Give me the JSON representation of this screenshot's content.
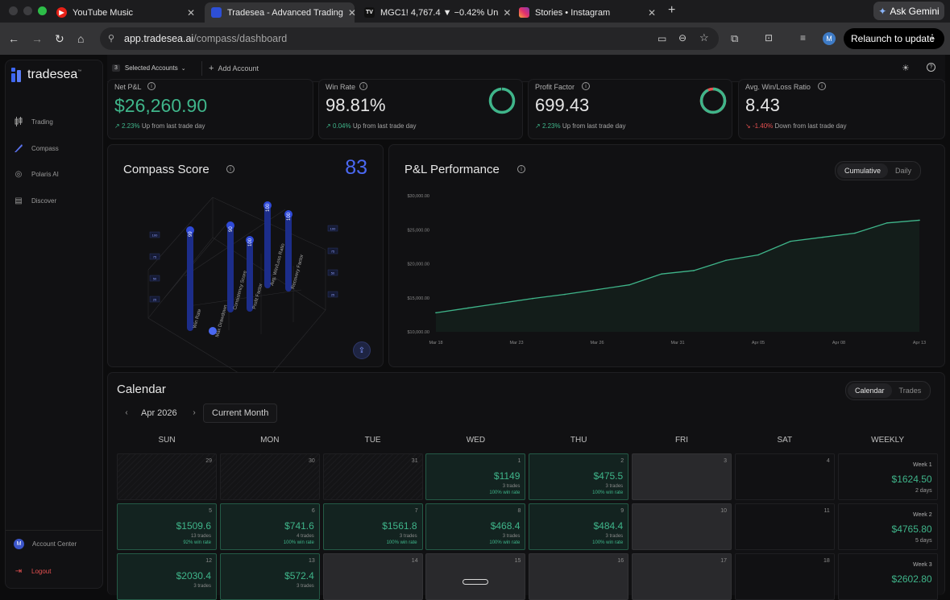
{
  "browser": {
    "tabs": [
      {
        "title": "YouTube Music"
      },
      {
        "title": "Tradesea - Advanced Trading"
      },
      {
        "title": "MGC1! 4,767.4 ▼ −0.42% Un"
      },
      {
        "title": "Stories • Instagram"
      }
    ],
    "new_tab": "+",
    "close_glyph": "✕",
    "gemini": "Ask Gemini",
    "url_host": "app.tradesea.ai",
    "url_path": "/compass/dashboard",
    "profile_initial": "M",
    "relaunch": "Relaunch to update"
  },
  "sidebar": {
    "brand": "tradesea",
    "brand_mark": "™",
    "items": [
      {
        "label": "Trading",
        "icon": "candlestick-icon"
      },
      {
        "label": "Compass",
        "icon": "compass-icon"
      },
      {
        "label": "Polaris AI",
        "icon": "polaris-icon"
      },
      {
        "label": "Discover",
        "icon": "discover-icon"
      }
    ],
    "account_initial": "M",
    "account_center": "Account Center",
    "logout": "Logout"
  },
  "topbar": {
    "account_count": "3",
    "selected_accounts": "Selected Accounts",
    "add_account": "Add Account"
  },
  "stats": [
    {
      "label": "Net P&L",
      "value": "$26,260.90",
      "change": "2.23%",
      "change_text": "Up from last trade day",
      "direction": "up"
    },
    {
      "label": "Win Rate",
      "value": "98.81%",
      "change": "0.04%",
      "change_text": "Up from last trade day",
      "direction": "up",
      "ring": 0.9881
    },
    {
      "label": "Profit Factor",
      "value": "699.43",
      "change": "2.23%",
      "change_text": "Up from last trade day",
      "direction": "up",
      "ring": 0.93
    },
    {
      "label": "Avg. Win/Loss Ratio",
      "value": "8.43",
      "change": "-1.40%",
      "change_text": "Down from last trade day",
      "direction": "down"
    }
  ],
  "compass": {
    "title": "Compass Score",
    "score": "83",
    "bars": [
      {
        "label": "Win Rate",
        "value": "99"
      },
      {
        "label": "Max Drawdown",
        "value": "0"
      },
      {
        "label": "Consistency Score",
        "value": "90"
      },
      {
        "label": "Profit Factor",
        "value": "100"
      },
      {
        "label": "Avg. Win/Loss Ratio",
        "value": "100"
      },
      {
        "label": "Recovery Factor",
        "value": "100"
      }
    ],
    "axis_ticks": [
      "100",
      "75",
      "50",
      "25"
    ]
  },
  "pnl": {
    "title": "P&L Performance",
    "toggle": [
      "Cumulative",
      "Daily"
    ],
    "active_toggle": "Cumulative"
  },
  "chart_data": {
    "type": "area",
    "title": "P&L Performance",
    "xlabel": "",
    "ylabel": "",
    "y_ticks": [
      "$30,000.00",
      "$25,000.00",
      "$20,000.00",
      "$15,000.00",
      "$10,000.00"
    ],
    "x_ticks": [
      "Mar 18",
      "Mar 23",
      "Mar 26",
      "Mar 31",
      "Apr 05",
      "Apr 08",
      "Apr 13"
    ],
    "ylim": [
      10000,
      30000
    ],
    "series": [
      {
        "values": [
          12800,
          13500,
          14200,
          14900,
          15500,
          16200,
          16900,
          18500,
          19000,
          20500,
          21300,
          23300,
          23900,
          24500,
          26000,
          26400
        ]
      }
    ],
    "line_color": "#3fb58a"
  },
  "calendar": {
    "title": "Calendar",
    "toggle": [
      "Calendar",
      "Trades"
    ],
    "active_toggle": "Calendar",
    "prev": "‹",
    "next": "›",
    "month": "Apr 2026",
    "current_month": "Current Month",
    "days": [
      "SUN",
      "MON",
      "TUE",
      "WED",
      "THU",
      "FRI",
      "SAT",
      "WEEKLY"
    ],
    "rows": [
      [
        {
          "kind": "muted",
          "day": "29"
        },
        {
          "kind": "muted",
          "day": "30"
        },
        {
          "kind": "muted",
          "day": "31"
        },
        {
          "kind": "win",
          "day": "1",
          "amount": "$1149",
          "trades": "3 trades",
          "winrate": "100% win rate"
        },
        {
          "kind": "win",
          "day": "2",
          "amount": "$475.5",
          "trades": "3 trades",
          "winrate": "100% win rate"
        },
        {
          "kind": "nt",
          "day": "3"
        },
        {
          "kind": "empty",
          "day": "4"
        },
        {
          "kind": "week",
          "label": "Week 1",
          "amount": "$1624.50",
          "days": "2 days"
        }
      ],
      [
        {
          "kind": "win",
          "day": "5",
          "amount": "$1509.6",
          "trades": "13 trades",
          "winrate": "92% win rate"
        },
        {
          "kind": "win",
          "day": "6",
          "amount": "$741.6",
          "trades": "4 trades",
          "winrate": "100% win rate"
        },
        {
          "kind": "win",
          "day": "7",
          "amount": "$1561.8",
          "trades": "3 trades",
          "winrate": "100% win rate"
        },
        {
          "kind": "win",
          "day": "8",
          "amount": "$468.4",
          "trades": "3 trades",
          "winrate": "100% win rate"
        },
        {
          "kind": "win",
          "day": "9",
          "amount": "$484.4",
          "trades": "3 trades",
          "winrate": "100% win rate"
        },
        {
          "kind": "nt",
          "day": "10"
        },
        {
          "kind": "empty",
          "day": "11"
        },
        {
          "kind": "week",
          "label": "Week 2",
          "amount": "$4765.80",
          "days": "5 days"
        }
      ],
      [
        {
          "kind": "win",
          "day": "12",
          "amount": "$2030.4",
          "trades": "3 trades",
          "winrate": ""
        },
        {
          "kind": "win",
          "day": "13",
          "amount": "$572.4",
          "trades": "3 trades",
          "winrate": ""
        },
        {
          "kind": "nt",
          "day": "14"
        },
        {
          "kind": "nt",
          "day": "15"
        },
        {
          "kind": "nt",
          "day": "16"
        },
        {
          "kind": "nt",
          "day": "17"
        },
        {
          "kind": "empty",
          "day": "18"
        },
        {
          "kind": "week",
          "label": "Week 3",
          "amount": "$2602.80",
          "days": ""
        }
      ]
    ]
  }
}
